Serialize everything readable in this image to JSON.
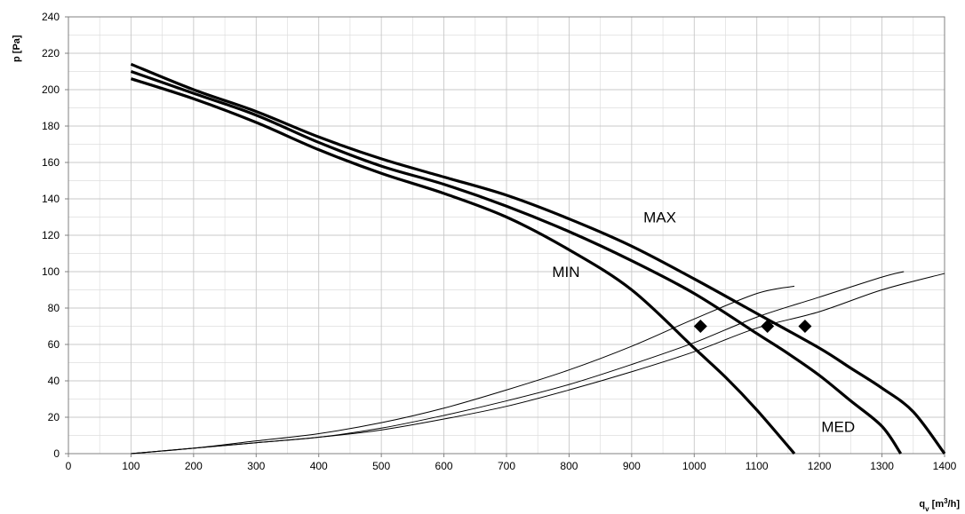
{
  "chart_data": {
    "type": "line",
    "title": "",
    "xlabel": {
      "base": "q",
      "sub": "v",
      "unit_pre": " [m",
      "sup": "3",
      "unit_post": "/h]"
    },
    "ylabel": "p [Pa]",
    "xlim": [
      0,
      1400
    ],
    "ylim": [
      0,
      240
    ],
    "x_ticks": [
      0,
      100,
      200,
      300,
      400,
      500,
      600,
      700,
      800,
      900,
      1000,
      1100,
      1200,
      1300,
      1400
    ],
    "y_ticks": [
      0,
      20,
      40,
      60,
      80,
      100,
      120,
      140,
      160,
      180,
      200,
      220,
      240
    ],
    "x_minor_step": 50,
    "y_minor_step": 10,
    "grid": true,
    "colors": {
      "line": "#000000",
      "grid": "#c8c8c8",
      "axis": "#808080"
    },
    "fan_curves": [
      {
        "label": "MIN",
        "points": [
          [
            100,
            206
          ],
          [
            200,
            195
          ],
          [
            300,
            182
          ],
          [
            400,
            167
          ],
          [
            500,
            154
          ],
          [
            600,
            143
          ],
          [
            700,
            130
          ],
          [
            800,
            112
          ],
          [
            900,
            90
          ],
          [
            1000,
            58
          ],
          [
            1050,
            42
          ],
          [
            1100,
            24
          ],
          [
            1160,
            0
          ]
        ]
      },
      {
        "label": "MED",
        "points": [
          [
            100,
            210
          ],
          [
            200,
            198
          ],
          [
            300,
            186
          ],
          [
            400,
            171
          ],
          [
            500,
            158
          ],
          [
            600,
            148
          ],
          [
            700,
            136
          ],
          [
            800,
            122
          ],
          [
            900,
            106
          ],
          [
            1000,
            88
          ],
          [
            1100,
            66
          ],
          [
            1150,
            55
          ],
          [
            1200,
            43
          ],
          [
            1250,
            29
          ],
          [
            1300,
            15
          ],
          [
            1330,
            0
          ]
        ]
      },
      {
        "label": "MAX",
        "points": [
          [
            100,
            214
          ],
          [
            200,
            200
          ],
          [
            300,
            188
          ],
          [
            400,
            174
          ],
          [
            500,
            162
          ],
          [
            600,
            152
          ],
          [
            700,
            142
          ],
          [
            800,
            129
          ],
          [
            900,
            114
          ],
          [
            1000,
            96
          ],
          [
            1100,
            77
          ],
          [
            1200,
            58
          ],
          [
            1250,
            47
          ],
          [
            1300,
            36
          ],
          [
            1350,
            23
          ],
          [
            1400,
            0
          ]
        ]
      }
    ],
    "system_curves": [
      {
        "points": [
          [
            100,
            0
          ],
          [
            200,
            3
          ],
          [
            300,
            7
          ],
          [
            400,
            11
          ],
          [
            500,
            17
          ],
          [
            600,
            25
          ],
          [
            700,
            35
          ],
          [
            800,
            46
          ],
          [
            900,
            59
          ],
          [
            1000,
            74
          ],
          [
            1100,
            88
          ],
          [
            1160,
            92
          ]
        ]
      },
      {
        "points": [
          [
            100,
            0
          ],
          [
            200,
            3
          ],
          [
            300,
            6
          ],
          [
            400,
            9
          ],
          [
            500,
            14
          ],
          [
            600,
            21
          ],
          [
            700,
            29
          ],
          [
            800,
            38
          ],
          [
            900,
            49
          ],
          [
            1000,
            61
          ],
          [
            1100,
            75
          ],
          [
            1200,
            86
          ],
          [
            1300,
            97
          ],
          [
            1335,
            100
          ]
        ]
      },
      {
        "points": [
          [
            100,
            0
          ],
          [
            200,
            3
          ],
          [
            300,
            6
          ],
          [
            400,
            9
          ],
          [
            500,
            13
          ],
          [
            600,
            19
          ],
          [
            700,
            26
          ],
          [
            800,
            35
          ],
          [
            900,
            45
          ],
          [
            1000,
            56
          ],
          [
            1100,
            69
          ],
          [
            1200,
            78
          ],
          [
            1300,
            90
          ],
          [
            1400,
            99
          ]
        ]
      }
    ],
    "operating_points": [
      [
        1010,
        70
      ],
      [
        1117,
        70
      ],
      [
        1177,
        70
      ]
    ],
    "annotations": [
      {
        "text": "MAX",
        "x": 945,
        "y": 130
      },
      {
        "text": "MIN",
        "x": 795,
        "y": 100
      },
      {
        "text": "MED",
        "x": 1230,
        "y": 15
      }
    ]
  }
}
